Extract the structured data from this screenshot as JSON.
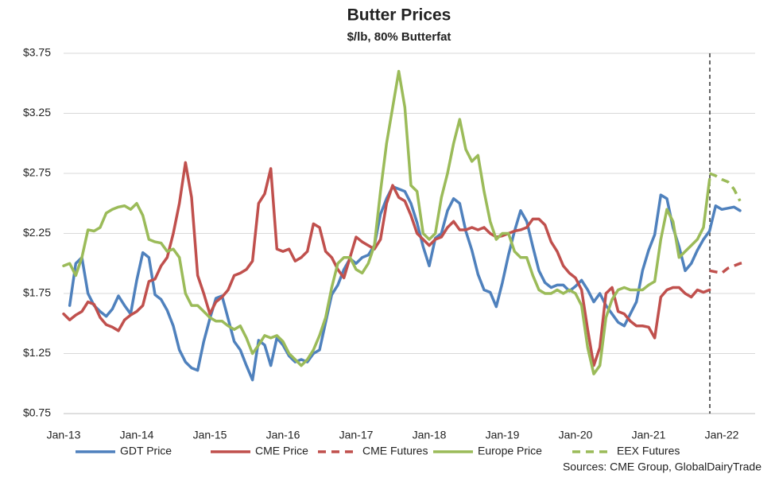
{
  "chart_data": {
    "type": "line",
    "title": "Butter Prices",
    "subtitle": "$/lb, 80% Butterfat",
    "note": "Sources:  CME Group, GlobalDairyTrade",
    "categories": [
      "Jan-13",
      null,
      null,
      null,
      null,
      null,
      null,
      null,
      null,
      null,
      null,
      null,
      "Jan-14",
      null,
      null,
      null,
      null,
      null,
      null,
      null,
      null,
      null,
      null,
      null,
      "Jan-15",
      null,
      null,
      null,
      null,
      null,
      null,
      null,
      null,
      null,
      null,
      null,
      "Jan-16",
      null,
      null,
      null,
      null,
      null,
      null,
      null,
      null,
      null,
      null,
      null,
      "Jan-17",
      null,
      null,
      null,
      null,
      null,
      null,
      null,
      null,
      null,
      null,
      null,
      "Jan-18",
      null,
      null,
      null,
      null,
      null,
      null,
      null,
      null,
      null,
      null,
      null,
      "Jan-19",
      null,
      null,
      null,
      null,
      null,
      null,
      null,
      null,
      null,
      null,
      null,
      "Jan-20",
      null,
      null,
      null,
      null,
      null,
      null,
      null,
      null,
      null,
      null,
      null,
      "Jan-21",
      null,
      null,
      null,
      null,
      null,
      null,
      null,
      null,
      null,
      null,
      null,
      "Jan-22",
      null,
      null,
      null,
      null,
      null
    ],
    "ylim": [
      0.75,
      3.75
    ],
    "yticks": [
      {
        "value": 0.75,
        "label": "$0.75"
      },
      {
        "value": 1.25,
        "label": "$1.25"
      },
      {
        "value": 1.75,
        "label": "$1.75"
      },
      {
        "value": 2.25,
        "label": "$2.25"
      },
      {
        "value": 2.75,
        "label": "$2.75"
      },
      {
        "value": 3.25,
        "label": "$3.25"
      },
      {
        "value": 3.75,
        "label": "$3.75"
      }
    ],
    "grid": true,
    "legend": "bottom",
    "series": [
      {
        "name": "GDT Price",
        "color": "#4f81bd",
        "style": "solid",
        "values": [
          null,
          1.65,
          2.0,
          2.05,
          1.75,
          1.65,
          1.6,
          1.56,
          1.62,
          1.73,
          1.65,
          1.58,
          1.86,
          2.09,
          2.05,
          1.74,
          1.7,
          1.61,
          1.48,
          1.28,
          1.18,
          1.13,
          1.11,
          1.35,
          1.54,
          1.71,
          1.73,
          1.54,
          1.35,
          1.28,
          1.15,
          1.03,
          1.36,
          1.32,
          1.15,
          1.38,
          1.32,
          1.23,
          1.18,
          1.2,
          1.18,
          1.25,
          1.28,
          1.51,
          1.74,
          1.82,
          1.95,
          2.04,
          2.0,
          2.05,
          2.07,
          2.15,
          2.41,
          2.54,
          2.64,
          2.62,
          2.6,
          2.5,
          2.34,
          2.14,
          1.98,
          2.21,
          2.25,
          2.44,
          2.54,
          2.5,
          2.27,
          2.11,
          1.91,
          1.78,
          1.76,
          1.64,
          1.84,
          2.07,
          2.27,
          2.44,
          2.35,
          2.14,
          1.94,
          1.84,
          1.8,
          1.82,
          1.82,
          1.77,
          1.81,
          1.86,
          1.78,
          1.68,
          1.75,
          1.65,
          1.58,
          1.51,
          1.48,
          1.58,
          1.68,
          1.94,
          2.11,
          2.24,
          2.57,
          2.54,
          2.3,
          2.14,
          1.94,
          2.0,
          2.11,
          2.2,
          2.27,
          2.48,
          2.45,
          2.46,
          2.47,
          2.44,
          null,
          null
        ]
      },
      {
        "name": "CME Price",
        "color": "#c0504d",
        "style": "solid",
        "values": [
          1.58,
          1.53,
          1.57,
          1.6,
          1.68,
          1.66,
          1.55,
          1.49,
          1.47,
          1.44,
          1.53,
          1.57,
          1.6,
          1.65,
          1.85,
          1.87,
          1.98,
          2.05,
          2.25,
          2.5,
          2.84,
          2.55,
          1.9,
          1.75,
          1.58,
          1.68,
          1.72,
          1.78,
          1.9,
          1.92,
          1.95,
          2.02,
          2.5,
          2.58,
          2.79,
          2.12,
          2.1,
          2.12,
          2.02,
          2.05,
          2.1,
          2.33,
          2.3,
          2.1,
          2.05,
          1.95,
          1.88,
          2.05,
          2.22,
          2.18,
          2.15,
          2.12,
          2.2,
          2.5,
          2.65,
          2.55,
          2.52,
          2.4,
          2.25,
          2.2,
          2.15,
          2.2,
          2.22,
          2.3,
          2.35,
          2.28,
          2.28,
          2.3,
          2.28,
          2.3,
          2.25,
          2.22,
          2.23,
          2.25,
          2.27,
          2.28,
          2.3,
          2.37,
          2.37,
          2.32,
          2.18,
          2.1,
          1.98,
          1.92,
          1.88,
          1.78,
          1.45,
          1.15,
          1.3,
          1.75,
          1.8,
          1.6,
          1.58,
          1.52,
          1.48,
          1.48,
          1.47,
          1.38,
          1.72,
          1.78,
          1.8,
          1.8,
          1.75,
          1.72,
          1.78,
          1.76,
          1.78,
          null,
          null,
          null,
          null,
          null,
          null,
          null
        ]
      },
      {
        "name": "CME Futures",
        "color": "#c0504d",
        "style": "dashed",
        "values": [
          null,
          null,
          null,
          null,
          null,
          null,
          null,
          null,
          null,
          null,
          null,
          null,
          null,
          null,
          null,
          null,
          null,
          null,
          null,
          null,
          null,
          null,
          null,
          null,
          null,
          null,
          null,
          null,
          null,
          null,
          null,
          null,
          null,
          null,
          null,
          null,
          null,
          null,
          null,
          null,
          null,
          null,
          null,
          null,
          null,
          null,
          null,
          null,
          null,
          null,
          null,
          null,
          null,
          null,
          null,
          null,
          null,
          null,
          null,
          null,
          null,
          null,
          null,
          null,
          null,
          null,
          null,
          null,
          null,
          null,
          null,
          null,
          null,
          null,
          null,
          null,
          null,
          null,
          null,
          null,
          null,
          null,
          null,
          null,
          null,
          null,
          null,
          null,
          null,
          null,
          null,
          null,
          null,
          null,
          null,
          null,
          null,
          null,
          null,
          null,
          null,
          null,
          null,
          null,
          null,
          null,
          1.94,
          1.93,
          1.92,
          1.96,
          1.98,
          2.0,
          2.01,
          null
        ]
      },
      {
        "name": "Europe Price",
        "color": "#9bbb59",
        "style": "solid",
        "values": [
          1.98,
          2.0,
          1.9,
          2.05,
          2.28,
          2.27,
          2.3,
          2.42,
          2.45,
          2.47,
          2.48,
          2.45,
          2.5,
          2.4,
          2.2,
          2.18,
          2.17,
          2.1,
          2.12,
          2.05,
          1.75,
          1.65,
          1.65,
          1.6,
          1.55,
          1.52,
          1.52,
          1.48,
          1.45,
          1.48,
          1.38,
          1.25,
          1.32,
          1.4,
          1.38,
          1.4,
          1.35,
          1.25,
          1.2,
          1.15,
          1.2,
          1.28,
          1.4,
          1.55,
          1.8,
          2.0,
          2.05,
          2.05,
          1.95,
          1.92,
          2.0,
          2.15,
          2.6,
          3.0,
          3.3,
          3.6,
          3.3,
          2.65,
          2.6,
          2.25,
          2.2,
          2.25,
          2.55,
          2.75,
          3.0,
          3.2,
          2.95,
          2.85,
          2.9,
          2.6,
          2.35,
          2.2,
          2.25,
          2.25,
          2.1,
          2.05,
          2.05,
          1.9,
          1.78,
          1.75,
          1.75,
          1.78,
          1.75,
          1.78,
          1.75,
          1.65,
          1.3,
          1.08,
          1.15,
          1.55,
          1.7,
          1.78,
          1.8,
          1.78,
          1.78,
          1.78,
          1.82,
          1.85,
          2.2,
          2.45,
          2.35,
          2.05,
          2.1,
          2.15,
          2.2,
          2.3,
          2.7,
          null,
          null,
          null,
          null,
          null,
          null,
          null
        ]
      },
      {
        "name": "EEX Futures",
        "color": "#9bbb59",
        "style": "dashed",
        "values": [
          null,
          null,
          null,
          null,
          null,
          null,
          null,
          null,
          null,
          null,
          null,
          null,
          null,
          null,
          null,
          null,
          null,
          null,
          null,
          null,
          null,
          null,
          null,
          null,
          null,
          null,
          null,
          null,
          null,
          null,
          null,
          null,
          null,
          null,
          null,
          null,
          null,
          null,
          null,
          null,
          null,
          null,
          null,
          null,
          null,
          null,
          null,
          null,
          null,
          null,
          null,
          null,
          null,
          null,
          null,
          null,
          null,
          null,
          null,
          null,
          null,
          null,
          null,
          null,
          null,
          null,
          null,
          null,
          null,
          null,
          null,
          null,
          null,
          null,
          null,
          null,
          null,
          null,
          null,
          null,
          null,
          null,
          null,
          null,
          null,
          null,
          null,
          null,
          null,
          null,
          null,
          null,
          null,
          null,
          null,
          null,
          null,
          null,
          null,
          null,
          null,
          null,
          null,
          null,
          null,
          null,
          2.75,
          2.73,
          2.7,
          2.68,
          2.62,
          2.52,
          null,
          null
        ]
      }
    ]
  }
}
